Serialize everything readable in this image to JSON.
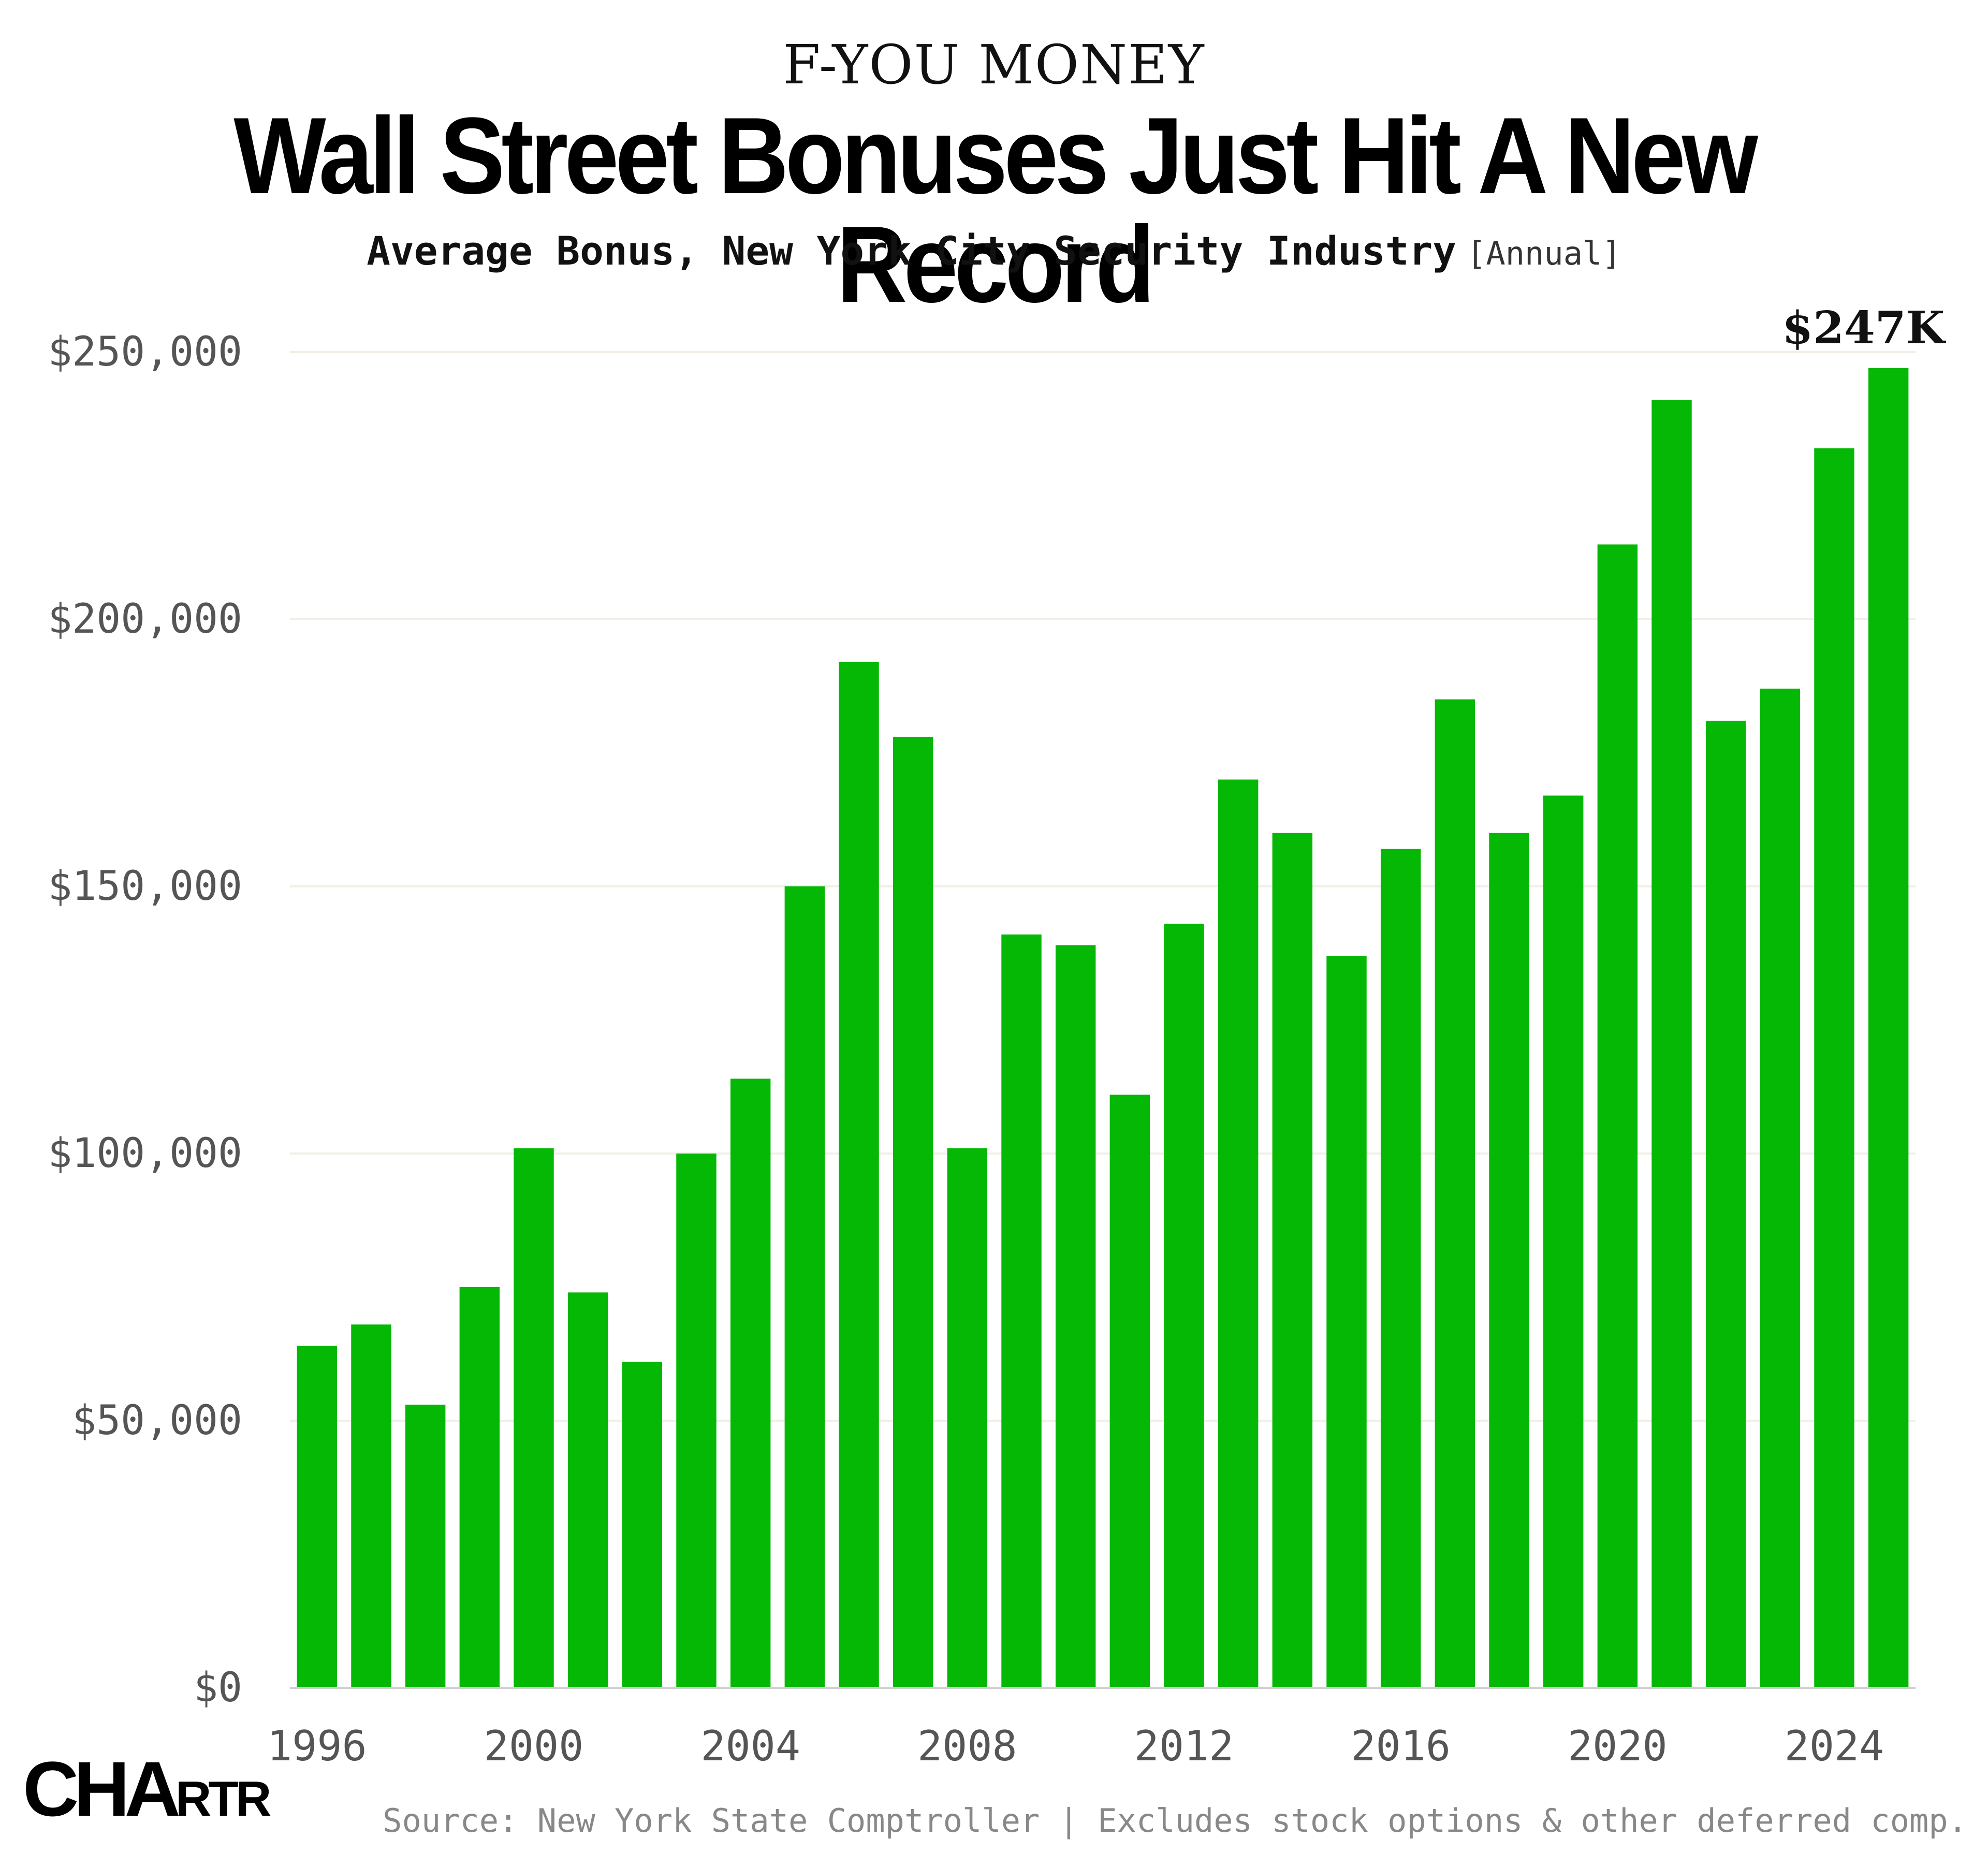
{
  "header": {
    "kicker": "F-YOU MONEY",
    "title": "Wall Street Bonuses Just Hit A New Record",
    "subtitle": "Average Bonus, New York City Security Industry",
    "frequency": "[Annual]"
  },
  "colors": {
    "bar": "#06b806",
    "grid": "#f2efe6",
    "axis": "#cfcfcf",
    "tick_text": "#555555",
    "source_text": "#888888"
  },
  "chart_data": {
    "type": "bar",
    "x": [
      1996,
      1997,
      1998,
      1999,
      2000,
      2001,
      2002,
      2003,
      2004,
      2005,
      2006,
      2007,
      2008,
      2009,
      2010,
      2011,
      2012,
      2013,
      2014,
      2015,
      2016,
      2017,
      2018,
      2019,
      2020,
      2021,
      2022,
      2023,
      2024,
      2025
    ],
    "values": [
      64000,
      68000,
      53000,
      75000,
      101000,
      74000,
      61000,
      100000,
      114000,
      150000,
      192000,
      178000,
      101000,
      141000,
      139000,
      111000,
      143000,
      170000,
      160000,
      137000,
      157000,
      185000,
      160000,
      167000,
      214000,
      241000,
      181000,
      187000,
      232000,
      247000
    ],
    "ylim": [
      0,
      250000
    ],
    "y_ticks": [
      0,
      50000,
      100000,
      150000,
      200000,
      250000
    ],
    "y_tick_labels": [
      "$0",
      "$50,000",
      "$100,000",
      "$150,000",
      "$200,000",
      "$250,000"
    ],
    "x_ticks": [
      1996,
      2000,
      2004,
      2008,
      2012,
      2016,
      2020,
      2024
    ],
    "x_tick_labels": [
      "1996",
      "2000",
      "2004",
      "2008",
      "2012",
      "2016",
      "2020",
      "2024"
    ],
    "grid": true,
    "annotation": {
      "x": 2025,
      "label": "$247K"
    }
  },
  "footer": {
    "logo": {
      "big": "CHA",
      "small": "RTR"
    },
    "source": "Source: New York State Comptroller | Excludes stock options & other deferred comp."
  }
}
